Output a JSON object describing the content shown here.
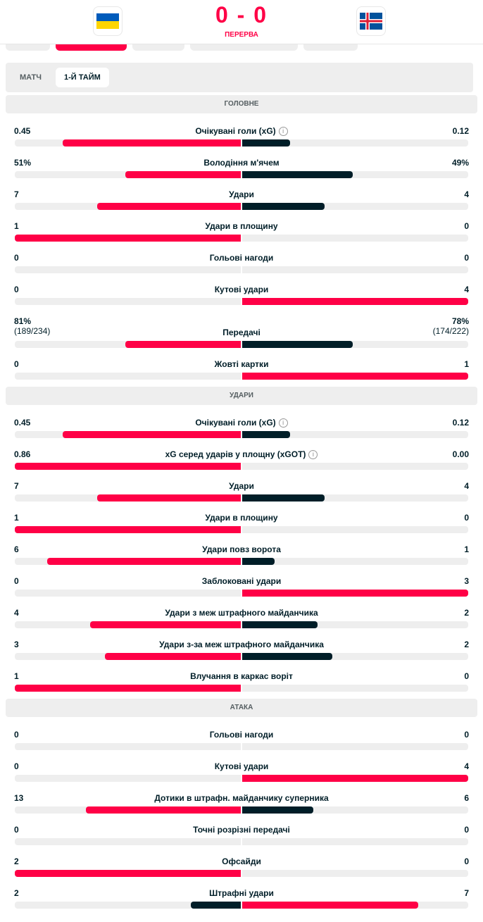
{
  "header": {
    "home_flag": "ukraine-flag",
    "away_flag": "iceland-flag",
    "score": "0 - 0",
    "status": "ПЕРЕРВА"
  },
  "period_tabs": [
    "МАТЧ",
    "1-Й ТАЙМ"
  ],
  "active_period": 1,
  "colors": {
    "winner": "#ff0046",
    "loser": "#001e28",
    "track": "#eeeeee"
  },
  "sections": [
    {
      "title": "ГОЛОВНЕ",
      "rows": [
        {
          "label": "Очікувані голи (xG)",
          "info": true,
          "home": "0.45",
          "away": "0.12",
          "hv": 0.45,
          "av": 0.12
        },
        {
          "label": "Володіння м'ячем",
          "home": "51%",
          "away": "49%",
          "hv": 51,
          "av": 49
        },
        {
          "label": "Удари",
          "home": "7",
          "away": "4",
          "hv": 7,
          "av": 4
        },
        {
          "label": "Удари в площину",
          "home": "1",
          "away": "0",
          "hv": 1,
          "av": 0
        },
        {
          "label": "Гольові нагоди",
          "home": "0",
          "away": "0",
          "hv": 0,
          "av": 0
        },
        {
          "label": "Кутові удари",
          "home": "0",
          "away": "4",
          "hv": 0,
          "av": 4
        },
        {
          "label": "Передачі",
          "home": "81%",
          "home_sub": "(189/234)",
          "away": "78%",
          "away_sub": "(174/222)",
          "hv": 81,
          "av": 78
        },
        {
          "label": "Жовті картки",
          "home": "0",
          "away": "1",
          "hv": 0,
          "av": 1
        }
      ]
    },
    {
      "title": "УДАРИ",
      "rows": [
        {
          "label": "Очікувані голи (xG)",
          "info": true,
          "home": "0.45",
          "away": "0.12",
          "hv": 0.45,
          "av": 0.12
        },
        {
          "label": "xG серед ударів у площну (xGOT)",
          "info": true,
          "home": "0.86",
          "away": "0.00",
          "hv": 0.86,
          "av": 0
        },
        {
          "label": "Удари",
          "home": "7",
          "away": "4",
          "hv": 7,
          "av": 4
        },
        {
          "label": "Удари в площину",
          "home": "1",
          "away": "0",
          "hv": 1,
          "av": 0
        },
        {
          "label": "Удари повз ворота",
          "home": "6",
          "away": "1",
          "hv": 6,
          "av": 1
        },
        {
          "label": "Заблоковані удари",
          "home": "0",
          "away": "3",
          "hv": 0,
          "av": 3
        },
        {
          "label": "Удари з меж штрафного майданчика",
          "home": "4",
          "away": "2",
          "hv": 4,
          "av": 2
        },
        {
          "label": "Удари з-за меж штрафного майданчика",
          "home": "3",
          "away": "2",
          "hv": 3,
          "av": 2
        },
        {
          "label": "Влучання в каркас воріт",
          "home": "1",
          "away": "0",
          "hv": 1,
          "av": 0
        }
      ]
    },
    {
      "title": "АТАКА",
      "rows": [
        {
          "label": "Гольові нагоди",
          "home": "0",
          "away": "0",
          "hv": 0,
          "av": 0
        },
        {
          "label": "Кутові удари",
          "home": "0",
          "away": "4",
          "hv": 0,
          "av": 4
        },
        {
          "label": "Дотики в штрафн. майданчику суперника",
          "home": "13",
          "away": "6",
          "hv": 13,
          "av": 6
        },
        {
          "label": "Точні розрізні передачі",
          "home": "0",
          "away": "0",
          "hv": 0,
          "av": 0
        },
        {
          "label": "Офсайди",
          "home": "2",
          "away": "0",
          "hv": 2,
          "av": 0
        },
        {
          "label": "Штрафні удари",
          "home": "2",
          "away": "7",
          "hv": 2,
          "av": 7
        }
      ]
    }
  ]
}
